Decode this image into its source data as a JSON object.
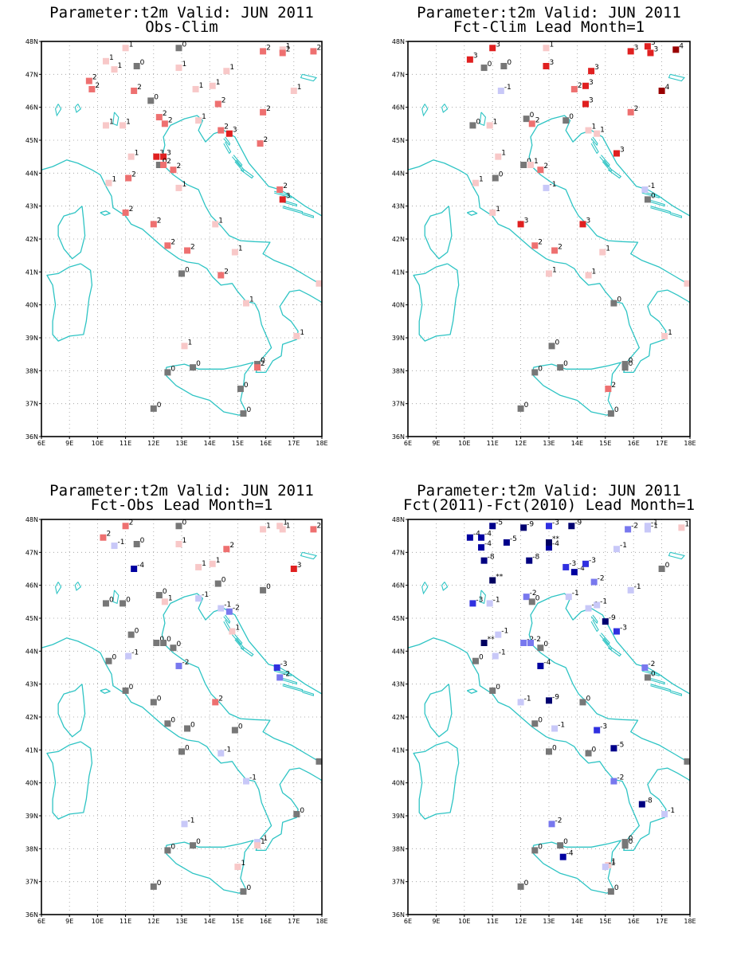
{
  "figure_params": {
    "xticks": [
      "6E",
      "9E",
      "10E",
      "11E",
      "12E",
      "13E",
      "14E",
      "15E",
      "16E",
      "17E",
      "18E"
    ],
    "yticks": [
      "36N",
      "37N",
      "38N",
      "39N",
      "40N",
      "41N",
      "42N",
      "43N",
      "44N",
      "45N",
      "46N",
      "47N",
      "48N"
    ],
    "lon_range": [
      8,
      18
    ],
    "lat_range": [
      36,
      48
    ]
  },
  "colors": {
    "coast": "#2ec4c4",
    "grid": "#999999",
    "zero": "#777777",
    "pos": {
      "1": "#f8c8c8",
      "2": "#ee7070",
      "3": "#e02020",
      "4": "#990000"
    },
    "neg": {
      "1": "#c8c8f8",
      "2": "#7878ee",
      "3": "#3030e0",
      "4": "#0000a0",
      "5": "#00008a",
      "8": "#000080",
      "9": "#000070",
      "**": "#000060"
    }
  },
  "panels": [
    {
      "title1": "Parameter:t2m Valid: JUN 2011",
      "title2": "Obs-Clim",
      "stations": [
        [
          9.7,
          46.8,
          "2"
        ],
        [
          9.8,
          46.55,
          "2"
        ],
        [
          10.3,
          47.4,
          "1"
        ],
        [
          10.6,
          47.15,
          "1"
        ],
        [
          11.0,
          47.8,
          "1"
        ],
        [
          11.4,
          47.25,
          "0"
        ],
        [
          12.9,
          47.8,
          "0"
        ],
        [
          12.9,
          47.2,
          "1"
        ],
        [
          14.6,
          47.1,
          "1"
        ],
        [
          15.9,
          47.7,
          "2"
        ],
        [
          16.6,
          47.75,
          "1"
        ],
        [
          16.6,
          47.65,
          "2"
        ],
        [
          17.7,
          47.7,
          "2"
        ],
        [
          11.3,
          46.5,
          "2"
        ],
        [
          11.9,
          46.2,
          "0"
        ],
        [
          13.5,
          46.55,
          "1"
        ],
        [
          14.1,
          46.65,
          "1"
        ],
        [
          14.3,
          46.1,
          "2"
        ],
        [
          15.9,
          45.85,
          "2"
        ],
        [
          17.0,
          46.5,
          "1"
        ],
        [
          10.3,
          45.45,
          "1"
        ],
        [
          10.9,
          45.45,
          "1"
        ],
        [
          12.2,
          45.7,
          "2"
        ],
        [
          12.4,
          45.5,
          "2"
        ],
        [
          13.6,
          45.6,
          "1"
        ],
        [
          14.4,
          45.3,
          "2"
        ],
        [
          14.7,
          45.2,
          "3"
        ],
        [
          15.8,
          44.9,
          "2"
        ],
        [
          11.2,
          44.5,
          "1"
        ],
        [
          12.1,
          44.5,
          "3"
        ],
        [
          12.35,
          44.5,
          "3"
        ],
        [
          12.2,
          44.25,
          "0"
        ],
        [
          12.35,
          44.25,
          "2"
        ],
        [
          12.7,
          44.1,
          "2"
        ],
        [
          11.1,
          43.85,
          "2"
        ],
        [
          10.4,
          43.7,
          "1"
        ],
        [
          12.9,
          43.55,
          "1"
        ],
        [
          16.5,
          43.5,
          "2"
        ],
        [
          16.6,
          43.2,
          "3"
        ],
        [
          11.0,
          42.8,
          "2"
        ],
        [
          12.0,
          42.45,
          "2"
        ],
        [
          14.2,
          42.45,
          "1"
        ],
        [
          12.5,
          41.8,
          "2"
        ],
        [
          13.2,
          41.65,
          "2"
        ],
        [
          14.9,
          41.6,
          "1"
        ],
        [
          13.0,
          40.95,
          "0"
        ],
        [
          14.4,
          40.9,
          "2"
        ],
        [
          15.3,
          40.05,
          "1"
        ],
        [
          17.9,
          40.65,
          "1"
        ],
        [
          17.1,
          39.05,
          "1"
        ],
        [
          13.1,
          38.75,
          "1"
        ],
        [
          12.5,
          37.95,
          "0"
        ],
        [
          13.4,
          38.1,
          "0"
        ],
        [
          15.7,
          38.2,
          "0"
        ],
        [
          15.7,
          38.1,
          "2"
        ],
        [
          15.1,
          37.45,
          "0"
        ],
        [
          12.0,
          36.85,
          "0"
        ],
        [
          15.2,
          36.7,
          "0"
        ]
      ]
    },
    {
      "title1": "Parameter:t2m Valid: JUN 2011",
      "title2": "Fct-Clim Lead Month=1",
      "stations": [
        [
          10.2,
          47.45,
          "3"
        ],
        [
          10.7,
          47.2,
          "0"
        ],
        [
          11.0,
          47.8,
          "3"
        ],
        [
          11.4,
          47.25,
          "0"
        ],
        [
          12.9,
          47.8,
          "1"
        ],
        [
          12.9,
          47.25,
          "3"
        ],
        [
          14.5,
          47.1,
          "3"
        ],
        [
          15.9,
          47.7,
          "3"
        ],
        [
          16.5,
          47.85,
          "3"
        ],
        [
          16.6,
          47.65,
          "3"
        ],
        [
          17.5,
          47.75,
          "4"
        ],
        [
          11.3,
          46.5,
          "-1"
        ],
        [
          13.9,
          46.55,
          "2"
        ],
        [
          14.3,
          46.1,
          "3"
        ],
        [
          14.3,
          46.65,
          "3"
        ],
        [
          15.9,
          45.85,
          "2"
        ],
        [
          17.0,
          46.5,
          "4"
        ],
        [
          10.3,
          45.45,
          "0"
        ],
        [
          10.9,
          45.45,
          "1"
        ],
        [
          12.2,
          45.65,
          "0"
        ],
        [
          12.4,
          45.5,
          "2"
        ],
        [
          13.6,
          45.6,
          "0"
        ],
        [
          14.4,
          45.3,
          "1"
        ],
        [
          14.7,
          45.2,
          "1"
        ],
        [
          15.4,
          44.6,
          "3"
        ],
        [
          11.2,
          44.5,
          "1"
        ],
        [
          12.1,
          44.25,
          "0"
        ],
        [
          12.35,
          44.25,
          "1"
        ],
        [
          12.7,
          44.1,
          "2"
        ],
        [
          11.1,
          43.85,
          "0"
        ],
        [
          10.4,
          43.7,
          "1"
        ],
        [
          12.9,
          43.55,
          "-1"
        ],
        [
          16.4,
          43.5,
          "-1"
        ],
        [
          16.5,
          43.2,
          "0"
        ],
        [
          11.0,
          42.8,
          "1"
        ],
        [
          12.0,
          42.45,
          "3"
        ],
        [
          14.2,
          42.45,
          "3"
        ],
        [
          12.5,
          41.8,
          "2"
        ],
        [
          13.2,
          41.65,
          "2"
        ],
        [
          14.9,
          41.6,
          "1"
        ],
        [
          13.0,
          40.95,
          "1"
        ],
        [
          14.4,
          40.9,
          "1"
        ],
        [
          15.3,
          40.05,
          "0"
        ],
        [
          17.9,
          40.65,
          "1"
        ],
        [
          17.1,
          39.05,
          "1"
        ],
        [
          13.1,
          38.75,
          "0"
        ],
        [
          12.5,
          37.95,
          "0"
        ],
        [
          13.4,
          38.1,
          "0"
        ],
        [
          15.7,
          38.2,
          "0"
        ],
        [
          15.7,
          38.1,
          "0"
        ],
        [
          15.1,
          37.45,
          "2"
        ],
        [
          12.0,
          36.85,
          "0"
        ],
        [
          15.2,
          36.7,
          "0"
        ]
      ]
    },
    {
      "title1": "Parameter:t2m Valid: JUN 2011",
      "title2": "Fct-Obs Lead Month=1",
      "stations": [
        [
          10.2,
          47.45,
          "2"
        ],
        [
          10.6,
          47.2,
          "-1"
        ],
        [
          11.0,
          47.8,
          "2"
        ],
        [
          11.4,
          47.25,
          "0"
        ],
        [
          12.9,
          47.8,
          "0"
        ],
        [
          12.9,
          47.25,
          "1"
        ],
        [
          14.6,
          47.1,
          "2"
        ],
        [
          15.9,
          47.7,
          "1"
        ],
        [
          16.5,
          47.8,
          "1"
        ],
        [
          16.6,
          47.7,
          "1"
        ],
        [
          17.7,
          47.7,
          "2"
        ],
        [
          11.3,
          46.5,
          "-4"
        ],
        [
          13.6,
          46.55,
          "1"
        ],
        [
          14.1,
          46.65,
          "1"
        ],
        [
          14.3,
          46.05,
          "0"
        ],
        [
          15.9,
          45.85,
          "0"
        ],
        [
          17.0,
          46.5,
          "3"
        ],
        [
          10.3,
          45.45,
          "0"
        ],
        [
          10.9,
          45.45,
          "0"
        ],
        [
          12.2,
          45.7,
          "0"
        ],
        [
          12.4,
          45.5,
          "1"
        ],
        [
          13.6,
          45.6,
          "-1"
        ],
        [
          14.4,
          45.3,
          "-1"
        ],
        [
          14.7,
          45.2,
          "-2"
        ],
        [
          14.8,
          44.6,
          "1"
        ],
        [
          11.2,
          44.5,
          "0"
        ],
        [
          12.1,
          44.25,
          "0"
        ],
        [
          12.35,
          44.25,
          "0"
        ],
        [
          12.7,
          44.1,
          "0"
        ],
        [
          11.1,
          43.85,
          "-1"
        ],
        [
          10.4,
          43.7,
          "0"
        ],
        [
          12.9,
          43.55,
          "-2"
        ],
        [
          16.4,
          43.5,
          "-3"
        ],
        [
          16.5,
          43.2,
          "-2"
        ],
        [
          11.0,
          42.8,
          "0"
        ],
        [
          12.0,
          42.45,
          "0"
        ],
        [
          14.2,
          42.45,
          "2"
        ],
        [
          12.5,
          41.8,
          "0"
        ],
        [
          13.2,
          41.65,
          "0"
        ],
        [
          14.9,
          41.6,
          "0"
        ],
        [
          13.0,
          40.95,
          "0"
        ],
        [
          14.4,
          40.9,
          "-1"
        ],
        [
          15.3,
          40.05,
          "-1"
        ],
        [
          17.9,
          40.65,
          "0"
        ],
        [
          17.1,
          39.05,
          "0"
        ],
        [
          13.1,
          38.75,
          "-1"
        ],
        [
          12.5,
          37.95,
          "0"
        ],
        [
          13.4,
          38.1,
          "0"
        ],
        [
          15.7,
          38.2,
          "-1"
        ],
        [
          15.7,
          38.1,
          "1"
        ],
        [
          15.0,
          37.45,
          "1"
        ],
        [
          12.0,
          36.85,
          "0"
        ],
        [
          15.2,
          36.7,
          "0"
        ]
      ]
    },
    {
      "title1": "Parameter:t2m Valid: JUN 2011",
      "title2": "Fct(2011)-Fct(2010) Lead Month=1",
      "stations": [
        [
          10.2,
          47.45,
          "-4"
        ],
        [
          10.6,
          47.15,
          "-4"
        ],
        [
          10.6,
          47.45,
          "-4"
        ],
        [
          11.0,
          47.8,
          "-5"
        ],
        [
          11.5,
          47.3,
          "-5"
        ],
        [
          12.1,
          47.75,
          "-9"
        ],
        [
          13.0,
          47.8,
          "-3"
        ],
        [
          13.8,
          47.8,
          "-9"
        ],
        [
          13.0,
          47.15,
          "-4"
        ],
        [
          13.0,
          47.3,
          "**"
        ],
        [
          15.8,
          47.7,
          "-2"
        ],
        [
          16.5,
          47.8,
          "-1"
        ],
        [
          17.7,
          47.75,
          "1"
        ],
        [
          16.5,
          47.7,
          "-1"
        ],
        [
          15.4,
          47.1,
          "-1"
        ],
        [
          10.7,
          46.75,
          "-8"
        ],
        [
          11.0,
          46.15,
          "**"
        ],
        [
          12.3,
          46.75,
          "-8"
        ],
        [
          13.6,
          46.55,
          "-3"
        ],
        [
          13.9,
          46.4,
          "-4"
        ],
        [
          14.3,
          46.65,
          "-3"
        ],
        [
          14.6,
          46.1,
          "-2"
        ],
        [
          15.9,
          45.85,
          "-1"
        ],
        [
          17.0,
          46.5,
          "0"
        ],
        [
          10.3,
          45.45,
          "-3"
        ],
        [
          10.9,
          45.45,
          "-1"
        ],
        [
          12.2,
          45.65,
          "-2"
        ],
        [
          12.4,
          45.5,
          "0"
        ],
        [
          13.7,
          45.65,
          "-1"
        ],
        [
          14.4,
          45.3,
          "-1"
        ],
        [
          14.7,
          45.4,
          "-1"
        ],
        [
          15.0,
          44.9,
          "-9"
        ],
        [
          15.4,
          44.6,
          "-3"
        ],
        [
          11.2,
          44.5,
          "-1"
        ],
        [
          10.7,
          44.25,
          "**"
        ],
        [
          12.1,
          44.25,
          "-2"
        ],
        [
          12.35,
          44.25,
          "-2"
        ],
        [
          12.7,
          44.1,
          "0"
        ],
        [
          11.1,
          43.85,
          "-1"
        ],
        [
          10.4,
          43.7,
          "0"
        ],
        [
          12.7,
          43.55,
          "-4"
        ],
        [
          16.4,
          43.5,
          "-2"
        ],
        [
          16.5,
          43.2,
          "0"
        ],
        [
          11.0,
          42.8,
          "0"
        ],
        [
          12.0,
          42.45,
          "-1"
        ],
        [
          13.0,
          42.5,
          "-9"
        ],
        [
          14.2,
          42.45,
          "0"
        ],
        [
          12.5,
          41.8,
          "0"
        ],
        [
          13.2,
          41.65,
          "-1"
        ],
        [
          14.7,
          41.6,
          "-3"
        ],
        [
          13.0,
          40.95,
          "0"
        ],
        [
          14.4,
          40.9,
          "0"
        ],
        [
          15.3,
          41.05,
          "-5"
        ],
        [
          15.3,
          40.05,
          "-2"
        ],
        [
          17.9,
          40.65,
          "0"
        ],
        [
          16.3,
          39.35,
          "-8"
        ],
        [
          17.1,
          39.05,
          "-1"
        ],
        [
          13.1,
          38.75,
          "-2"
        ],
        [
          12.5,
          37.95,
          "0"
        ],
        [
          13.4,
          38.1,
          "0"
        ],
        [
          15.7,
          38.2,
          "0"
        ],
        [
          15.7,
          38.1,
          "0"
        ],
        [
          13.5,
          37.75,
          "-4"
        ],
        [
          15.1,
          37.5,
          "1"
        ],
        [
          15.0,
          37.45,
          "-1"
        ],
        [
          12.0,
          36.85,
          "0"
        ],
        [
          15.2,
          36.7,
          "0"
        ]
      ]
    }
  ]
}
